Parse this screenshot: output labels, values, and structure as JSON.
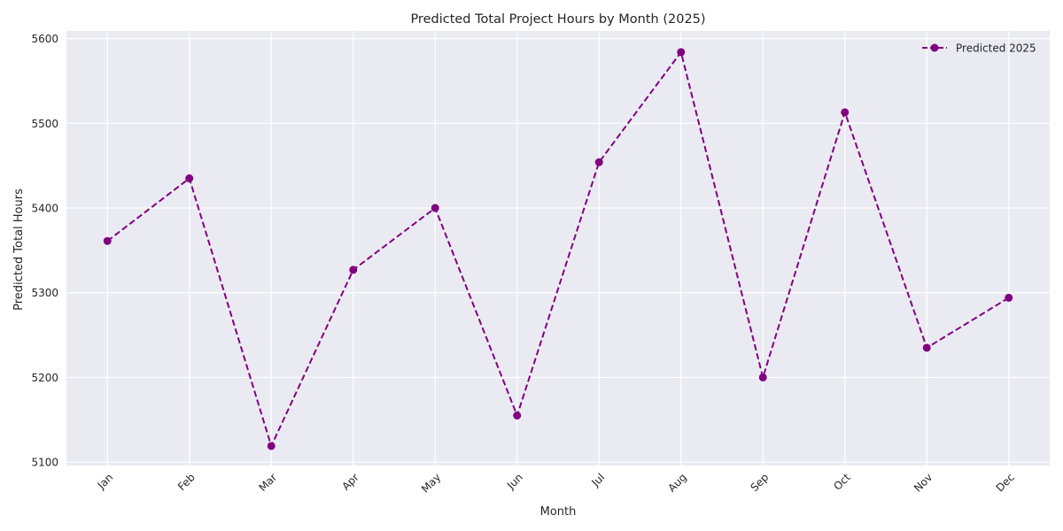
{
  "chart_data": {
    "type": "line",
    "title": "Predicted Total Project Hours by Month (2025)",
    "xlabel": "Month",
    "ylabel": "Predicted Total Hours",
    "categories": [
      "Jan",
      "Feb",
      "Mar",
      "Apr",
      "May",
      "Jun",
      "Jul",
      "Aug",
      "Sep",
      "Oct",
      "Nov",
      "Dec"
    ],
    "series": [
      {
        "name": "Predicted 2025",
        "values": [
          5361,
          5435,
          5119,
          5327,
          5400,
          5155,
          5454,
          5584,
          5200,
          5513,
          5235,
          5294
        ],
        "color": "#800080",
        "line_style": "dashed",
        "marker": "circle"
      }
    ],
    "yticks": [
      5100,
      5200,
      5300,
      5400,
      5500,
      5600
    ],
    "ylim": [
      5096,
      5609
    ],
    "grid": true,
    "legend_position": "top-right",
    "colors": {
      "plot_background": "#EAEAF2",
      "grid": "#FFFFFF",
      "text": "#262626"
    }
  }
}
